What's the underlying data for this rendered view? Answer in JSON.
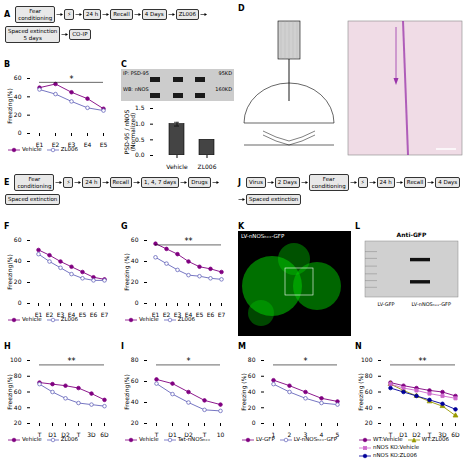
{
  "chart_data": [
    {
      "type": "diagram",
      "title": "A",
      "annotations": [
        "Fear\nconditioning",
        "⚡",
        "24 h",
        "Recall",
        "4 Days",
        "ZL006",
        "Spaced extinction\n5 days",
        "CO-IP"
      ]
    },
    {
      "type": "diagram",
      "title": "D"
    },
    {
      "type": "line",
      "title": "B",
      "categories": [
        "E1",
        "E2",
        "E3",
        "E4",
        "E5"
      ],
      "series": [
        {
          "name": "Vehicle",
          "color": "#800080",
          "marker": "circle",
          "values": [
            50,
            54,
            45,
            38,
            27
          ]
        },
        {
          "name": "ZL006",
          "color": "#6666bb",
          "marker": "open-circle",
          "values": [
            48,
            43,
            35,
            28,
            25
          ]
        }
      ],
      "ylabel": "Freezing(%)",
      "ylim": [
        0,
        60
      ],
      "yticks": [
        0,
        20,
        40,
        60
      ],
      "annotations": [
        "*"
      ]
    },
    {
      "type": "bar",
      "title": "C",
      "categories": [
        "Vehicle",
        "ZL006"
      ],
      "values": [
        1.0,
        0.5
      ],
      "errors": [
        0.06,
        null
      ],
      "color": "#444444",
      "ylabel": "PSD-95 / nNOS\n(Normalized)",
      "ylim": [
        0,
        1.5
      ],
      "yticks": [
        {
          "value": 0,
          "label": "0.0"
        },
        0.5,
        {
          "value": 1,
          "label": "1.0"
        },
        1.5
      ],
      "annotations": [
        "IP: PSD-95",
        "95KD",
        "WB: nNOS",
        "160KD"
      ]
    },
    {
      "type": "diagram",
      "title": "E",
      "annotations": [
        "Fear\nconditioning",
        "⚡",
        "24 h",
        "Recall",
        "1, 4, 7 days",
        "Drugs",
        "Spaced extinction"
      ]
    },
    {
      "type": "diagram",
      "title": "J",
      "annotations": [
        "Virus",
        "2 Days",
        "Fear\nconditioning",
        "⚡",
        "24 h",
        "Recall",
        "4 Days",
        "Spaced extinction"
      ]
    },
    {
      "type": "line",
      "title": "F",
      "categories": [
        "E1",
        "E2",
        "E3",
        "E4",
        "E5",
        "E6",
        "E7"
      ],
      "series": [
        {
          "name": "Vehicle",
          "color": "#800080",
          "marker": "circle",
          "values": [
            51,
            46,
            40,
            35,
            30,
            25,
            23
          ]
        },
        {
          "name": "ZL006",
          "color": "#6666bb",
          "marker": "open-circle",
          "values": [
            47,
            40,
            34,
            28,
            24,
            22,
            22
          ]
        }
      ],
      "ylabel": "Freezing(%)",
      "ylim": [
        0,
        60
      ],
      "yticks": [
        0,
        20,
        40,
        60
      ]
    },
    {
      "type": "line",
      "title": "G",
      "categories": [
        "E1",
        "E2",
        "E3",
        "E4",
        "E5",
        "E6",
        "E7"
      ],
      "series": [
        {
          "name": "Vehicle",
          "color": "#800080",
          "marker": "circle",
          "values": [
            57,
            52,
            47,
            40,
            35,
            33,
            30
          ]
        },
        {
          "name": "ZL006",
          "color": "#6666bb",
          "marker": "open-circle",
          "values": [
            44,
            38,
            32,
            27,
            26,
            24,
            23
          ]
        }
      ],
      "ylabel": "Freezing (%)",
      "ylim": [
        0,
        60
      ],
      "yticks": [
        0,
        20,
        40,
        60
      ],
      "annotations": [
        "**"
      ]
    },
    {
      "type": "diagram",
      "title": "K",
      "annotations": [
        "LV-nNOSₕₓₓ-GFP"
      ]
    },
    {
      "type": "diagram",
      "title": "L",
      "annotations": [
        "Anti-GFP",
        "LV-GFP",
        "LV-nNOSₕₓₓ-GFP"
      ]
    },
    {
      "type": "line",
      "title": "H",
      "categories": [
        "T",
        "D1",
        "D2",
        "T",
        "3D",
        "6D"
      ],
      "series": [
        {
          "name": "Vehicle",
          "color": "#800080",
          "marker": "circle",
          "values": [
            72,
            70,
            68,
            65,
            58,
            50
          ]
        },
        {
          "name": "ZL006",
          "color": "#6666bb",
          "marker": "open-circle",
          "values": [
            70,
            60,
            52,
            46,
            44,
            42
          ]
        }
      ],
      "ylabel": "Freezing(%)",
      "ylim": [
        20,
        100
      ],
      "yticks": [
        20,
        40,
        60,
        80,
        100
      ],
      "annotations": [
        "**"
      ]
    },
    {
      "type": "line",
      "title": "I",
      "categories": [
        "T",
        "D1",
        "D2",
        "T",
        "10"
      ],
      "series": [
        {
          "name": "Vehicle",
          "color": "#800080",
          "marker": "circle",
          "values": [
            62,
            58,
            50,
            42,
            38
          ]
        },
        {
          "name": "Tat-nNOSₕₓₓ",
          "color": "#6666bb",
          "marker": "open-circle",
          "values": [
            58,
            48,
            40,
            33,
            32
          ]
        }
      ],
      "ylabel": "Freezing(%)",
      "ylim": [
        20,
        80
      ],
      "yticks": [
        20,
        40,
        60,
        80
      ],
      "annotations": [
        "*"
      ]
    },
    {
      "type": "line",
      "title": "M",
      "categories": [
        "1",
        "2",
        "3",
        "4",
        "5"
      ],
      "series": [
        {
          "name": "LV-GFP",
          "color": "#800080",
          "marker": "circle",
          "values": [
            55,
            48,
            40,
            32,
            28
          ]
        },
        {
          "name": "LV-nNOSₕₓₓ-GFP",
          "color": "#6666bb",
          "marker": "open-circle",
          "values": [
            50,
            40,
            32,
            26,
            24
          ]
        }
      ],
      "ylabel": "Freezing (%)",
      "ylim": [
        0,
        80
      ],
      "yticks": [
        0,
        20,
        40,
        60,
        80
      ],
      "annotations": [
        "*"
      ]
    },
    {
      "type": "line",
      "title": "N",
      "categories": [
        "T",
        "D1",
        "D2",
        "T",
        "3D",
        "6D"
      ],
      "series": [
        {
          "name": "WT:Vehicle",
          "color": "#800080",
          "marker": "circle",
          "values": [
            72,
            68,
            65,
            62,
            60,
            55
          ]
        },
        {
          "name": "WT:ZL006",
          "color": "#999900",
          "marker": "triangle",
          "values": [
            70,
            62,
            55,
            48,
            42,
            30
          ]
        },
        {
          "name": "nNOS KO:Vehicle",
          "color": "#cc66cc",
          "marker": "square",
          "values": [
            70,
            65,
            62,
            58,
            55,
            52
          ]
        },
        {
          "name": "nNOS KO:ZL006",
          "color": "#000099",
          "marker": "circle",
          "values": [
            65,
            60,
            55,
            50,
            45,
            38
          ]
        }
      ],
      "ylabel": "Freezing (%)",
      "ylim": [
        20,
        100
      ],
      "yticks": [
        20,
        40,
        60,
        80,
        100
      ],
      "annotations": [
        "**"
      ]
    }
  ]
}
